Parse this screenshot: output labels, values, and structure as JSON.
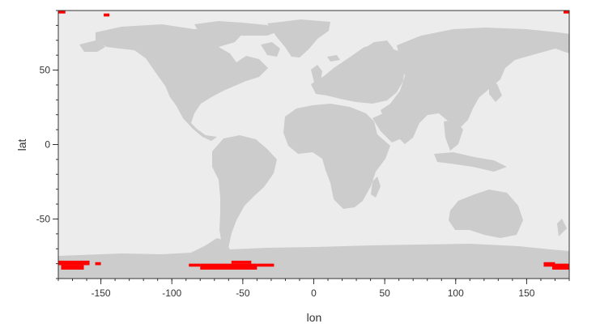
{
  "chart_data": {
    "type": "heatmap",
    "title": "",
    "xlabel": "lon",
    "ylabel": "lat",
    "xlim": [
      -180,
      180
    ],
    "ylim": [
      -90,
      90
    ],
    "x_ticks": [
      -150,
      -100,
      -50,
      0,
      50,
      100,
      150
    ],
    "y_ticks": [
      -50,
      0,
      50
    ],
    "x_minor_step": 10,
    "y_minor_step": 10,
    "grid": false,
    "colors": {
      "ocean": "#ececec",
      "land": "#cccccc",
      "highlight": "#ff0000",
      "border": "#333333"
    },
    "highlight_cells": [
      {
        "lon": [
          -180,
          -175
        ],
        "lat": [
          88,
          90
        ]
      },
      {
        "lon": [
          -148,
          -144
        ],
        "lat": [
          86,
          88
        ]
      },
      {
        "lon": [
          176,
          180
        ],
        "lat": [
          88,
          90
        ]
      },
      {
        "lon": [
          -180,
          -158
        ],
        "lat": [
          -81,
          -78
        ]
      },
      {
        "lon": [
          -178,
          -162
        ],
        "lat": [
          -84,
          -81
        ]
      },
      {
        "lon": [
          -154,
          -150
        ],
        "lat": [
          -81,
          -79
        ]
      },
      {
        "lon": [
          -88,
          -80
        ],
        "lat": [
          -82,
          -80
        ]
      },
      {
        "lon": [
          -80,
          -40
        ],
        "lat": [
          -84,
          -80
        ]
      },
      {
        "lon": [
          -40,
          -28
        ],
        "lat": [
          -82,
          -80
        ]
      },
      {
        "lon": [
          -58,
          -44
        ],
        "lat": [
          -80,
          -78
        ]
      },
      {
        "lon": [
          162,
          170
        ],
        "lat": [
          -82,
          -79
        ]
      },
      {
        "lon": [
          168,
          180
        ],
        "lat": [
          -84,
          -80
        ]
      }
    ]
  }
}
